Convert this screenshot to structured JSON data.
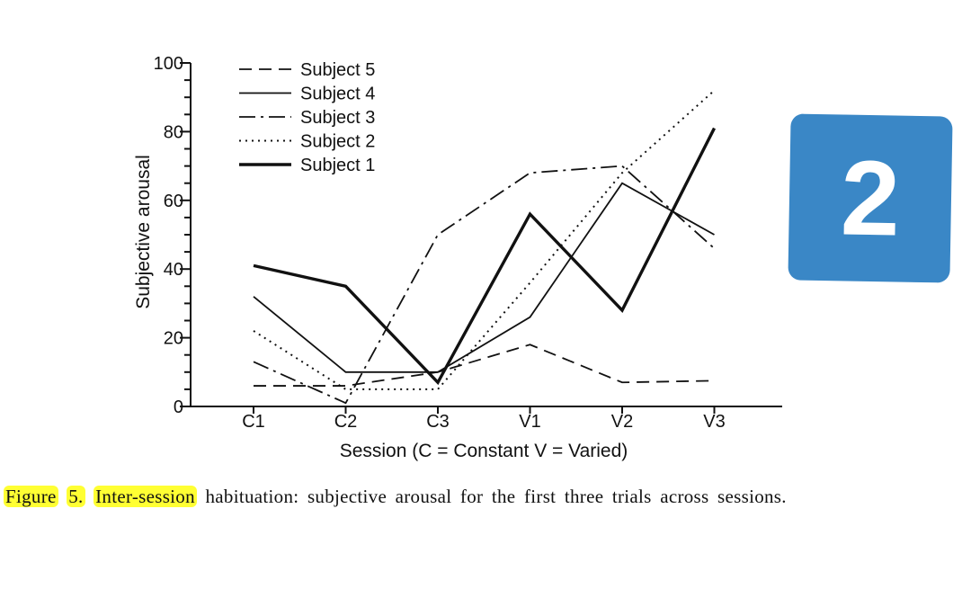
{
  "chart_data": {
    "type": "line",
    "title": "",
    "xlabel": "Session (C = Constant V = Varied)",
    "ylabel": "Subjective arousal",
    "categories": [
      "C1",
      "C2",
      "C3",
      "V1",
      "V2",
      "V3"
    ],
    "ylim": [
      0,
      100
    ],
    "yticks": [
      0,
      20,
      40,
      60,
      80,
      100
    ],
    "legend_position": "top-left",
    "series": [
      {
        "name": "Subject 5",
        "style": "dashed",
        "values": [
          6,
          6,
          10,
          18,
          7,
          7.5
        ]
      },
      {
        "name": "Subject 4",
        "style": "solid",
        "values": [
          32,
          10,
          10,
          26,
          65,
          50
        ]
      },
      {
        "name": "Subject 3",
        "style": "dashdot",
        "values": [
          13,
          1,
          50,
          68,
          70,
          46
        ]
      },
      {
        "name": "Subject 2",
        "style": "dotted",
        "values": [
          22,
          5,
          5,
          36,
          68,
          92
        ]
      },
      {
        "name": "Subject 1",
        "style": "thick",
        "values": [
          41,
          35,
          7,
          56,
          28,
          81
        ]
      }
    ]
  },
  "caption": {
    "figure_label": "Figure",
    "figure_number": "5.",
    "heading": "Inter-session",
    "text": "habituation: subjective arousal for the first three trials across sessions."
  },
  "page_badge": {
    "number": "2",
    "color": "#3a87c6"
  }
}
